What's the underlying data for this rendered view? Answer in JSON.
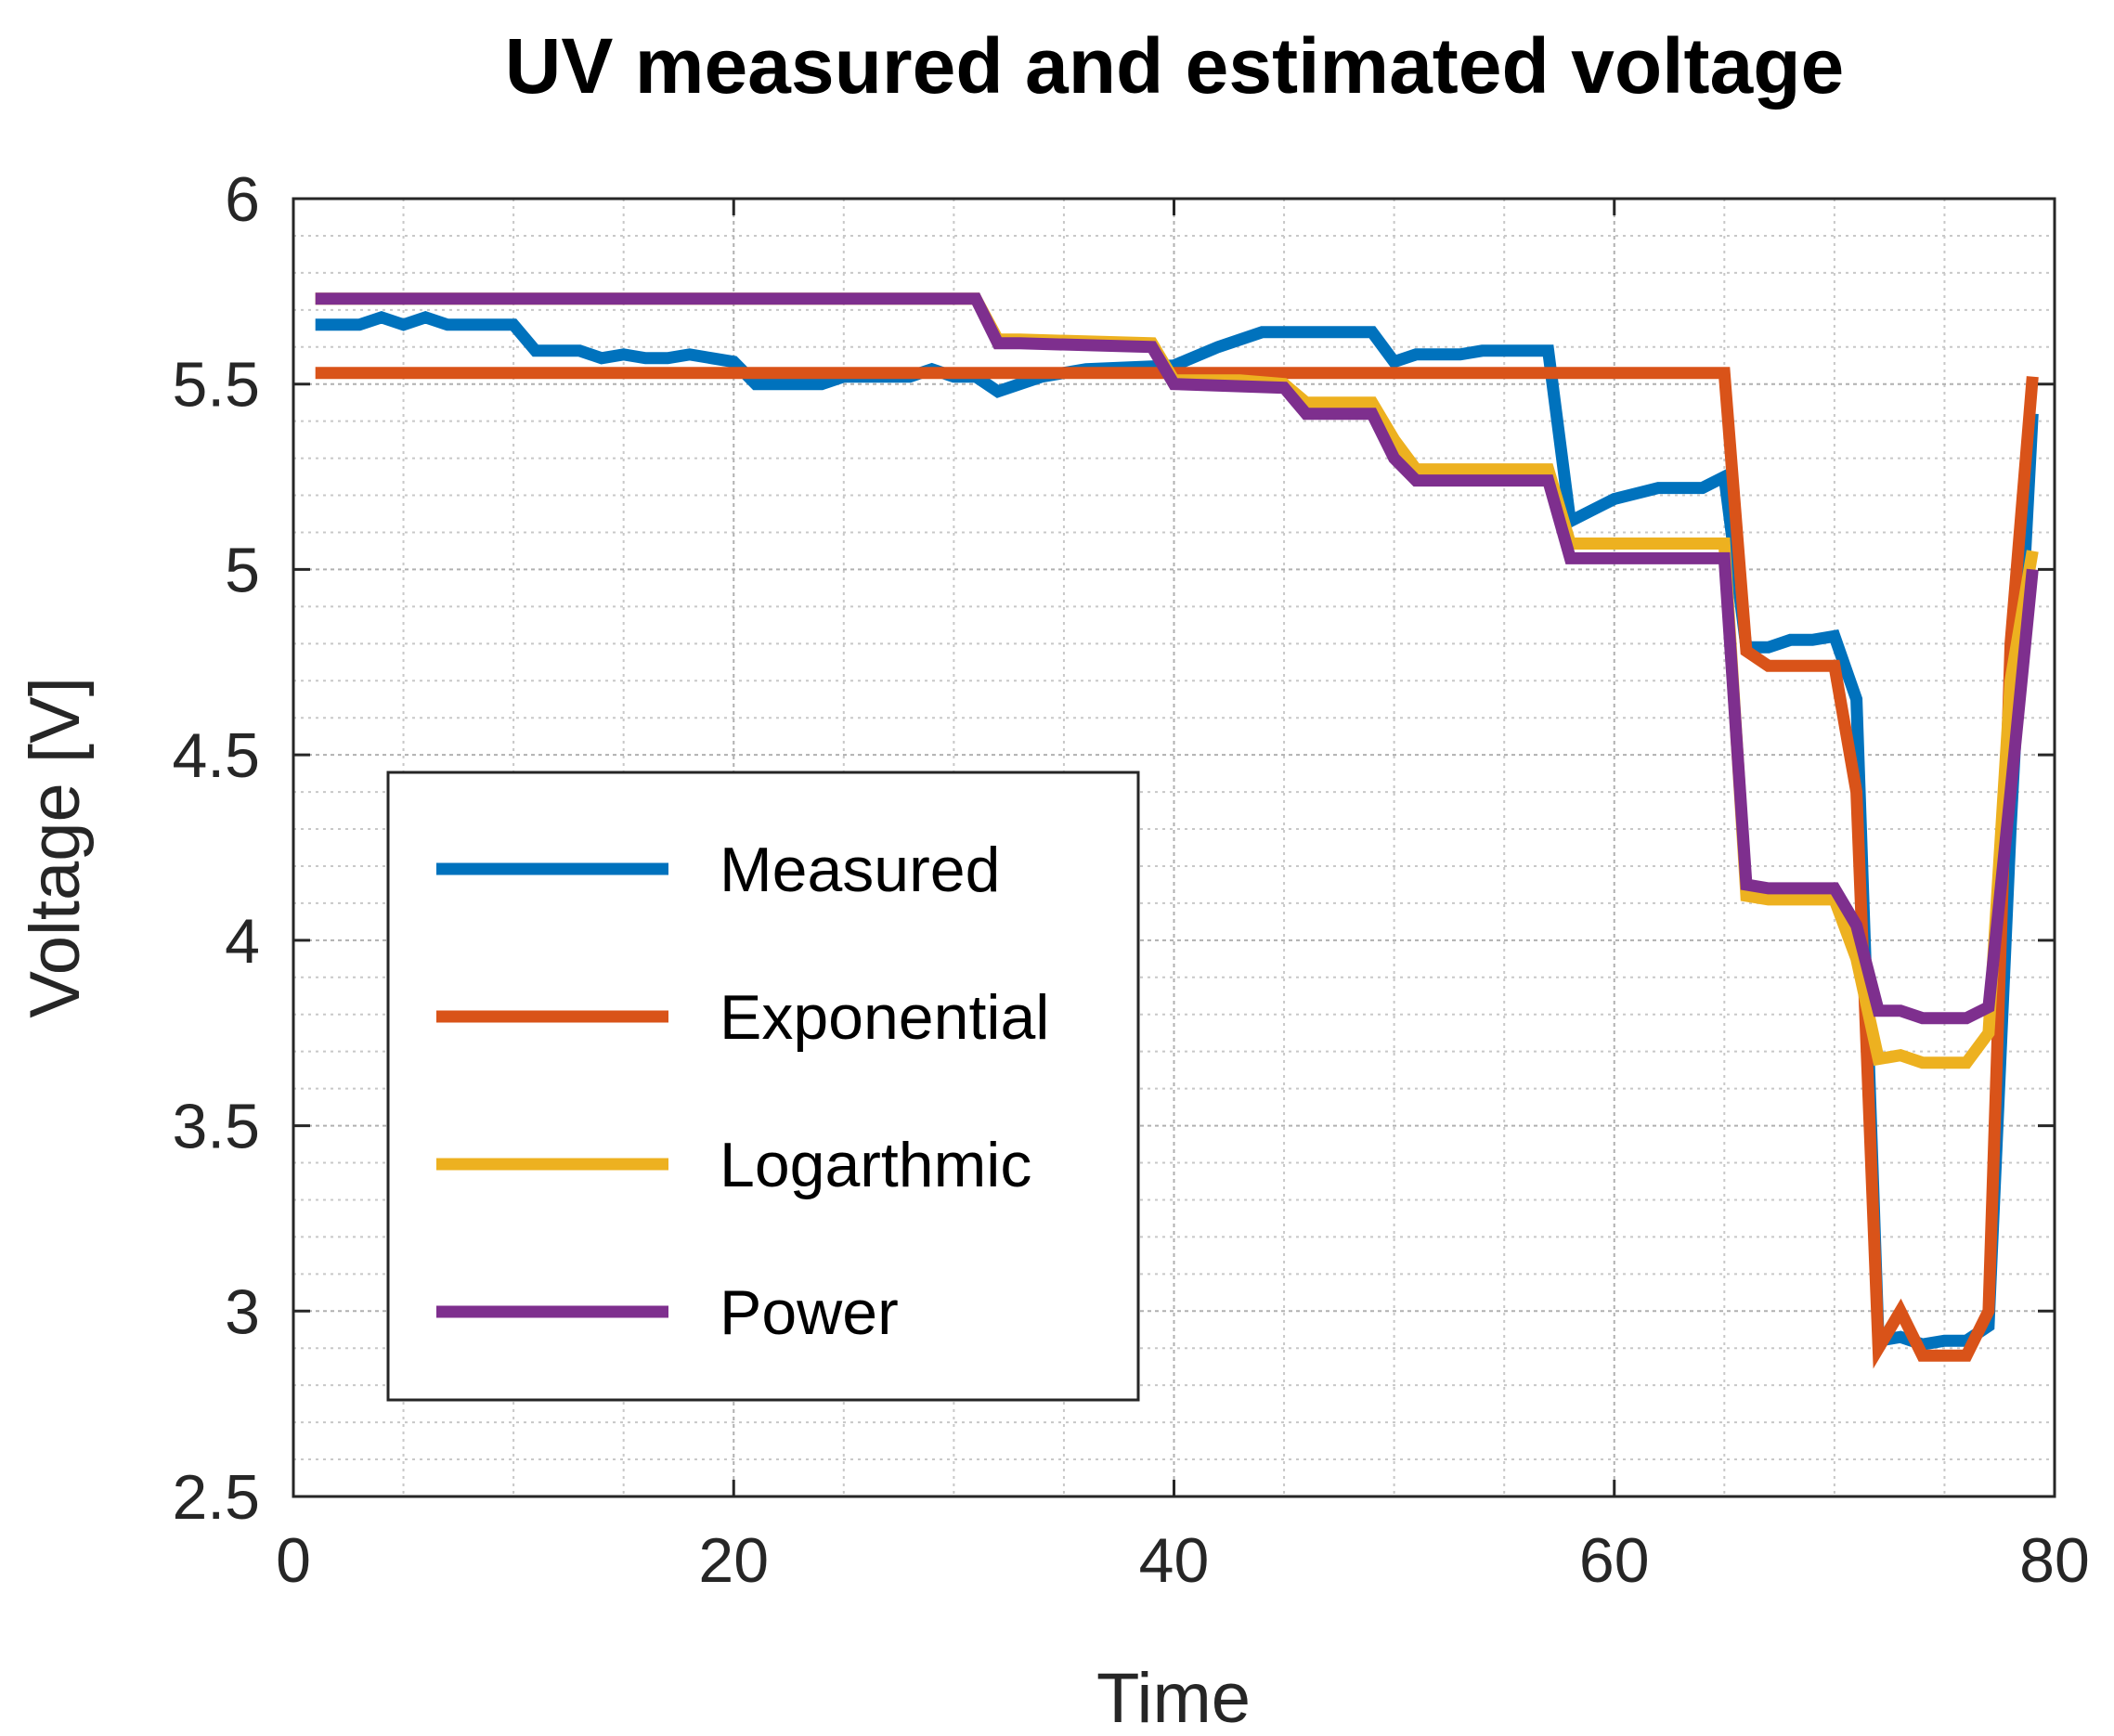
{
  "chart_data": {
    "type": "line",
    "title": "UV measured and estimated voltage",
    "xlabel": "Time",
    "ylabel": "Voltage [V]",
    "xlim": [
      0,
      80
    ],
    "ylim": [
      2.5,
      6
    ],
    "xticks": [
      0,
      20,
      40,
      60,
      80
    ],
    "yticks": [
      2.5,
      3,
      3.5,
      4,
      4.5,
      5,
      5.5,
      6
    ],
    "xtick_labels": [
      "0",
      "20",
      "40",
      "60",
      "80"
    ],
    "ytick_labels": [
      "2.5",
      "3",
      "3.5",
      "4",
      "4.5",
      "5",
      "5.5",
      "6"
    ],
    "grid": "major and minor",
    "legend_position": "lower-left",
    "series": [
      {
        "name": "Measured",
        "color": "#0072BD",
        "points": [
          [
            1,
            5.66
          ],
          [
            3,
            5.66
          ],
          [
            4,
            5.68
          ],
          [
            5,
            5.66
          ],
          [
            6,
            5.68
          ],
          [
            7,
            5.66
          ],
          [
            10,
            5.66
          ],
          [
            11,
            5.59
          ],
          [
            13,
            5.59
          ],
          [
            14,
            5.57
          ],
          [
            15,
            5.58
          ],
          [
            16,
            5.57
          ],
          [
            17,
            5.57
          ],
          [
            18,
            5.58
          ],
          [
            19,
            5.57
          ],
          [
            20,
            5.56
          ],
          [
            21,
            5.5
          ],
          [
            24,
            5.5
          ],
          [
            25,
            5.52
          ],
          [
            28,
            5.52
          ],
          [
            29,
            5.54
          ],
          [
            30,
            5.52
          ],
          [
            31,
            5.52
          ],
          [
            32,
            5.48
          ],
          [
            33,
            5.5
          ],
          [
            34,
            5.52
          ],
          [
            36,
            5.54
          ],
          [
            40,
            5.55
          ],
          [
            42,
            5.6
          ],
          [
            44,
            5.64
          ],
          [
            49,
            5.64
          ],
          [
            50,
            5.56
          ],
          [
            51,
            5.58
          ],
          [
            53,
            5.58
          ],
          [
            54,
            5.59
          ],
          [
            57,
            5.59
          ],
          [
            58,
            5.13
          ],
          [
            59,
            5.16
          ],
          [
            60,
            5.19
          ],
          [
            62,
            5.22
          ],
          [
            64,
            5.22
          ],
          [
            65,
            5.25
          ],
          [
            66,
            4.79
          ],
          [
            67,
            4.79
          ],
          [
            68,
            4.81
          ],
          [
            69,
            4.81
          ],
          [
            70,
            4.82
          ],
          [
            71,
            4.65
          ],
          [
            72,
            2.92
          ],
          [
            73,
            2.93
          ],
          [
            74,
            2.91
          ],
          [
            75,
            2.92
          ],
          [
            76,
            2.92
          ],
          [
            77,
            2.96
          ],
          [
            78,
            4.3
          ],
          [
            79,
            5.42
          ]
        ]
      },
      {
        "name": "Exponential",
        "color": "#D95319",
        "points": [
          [
            1,
            5.53
          ],
          [
            65,
            5.53
          ],
          [
            66,
            4.78
          ],
          [
            67,
            4.74
          ],
          [
            70,
            4.74
          ],
          [
            71,
            4.4
          ],
          [
            72,
            2.9
          ],
          [
            73,
            3.0
          ],
          [
            74,
            2.88
          ],
          [
            76,
            2.88
          ],
          [
            77,
            3.0
          ],
          [
            78,
            4.8
          ],
          [
            79,
            5.52
          ]
        ]
      },
      {
        "name": "Logarthmic",
        "color": "#EDB120",
        "points": [
          [
            1,
            5.73
          ],
          [
            31,
            5.73
          ],
          [
            32,
            5.62
          ],
          [
            33,
            5.62
          ],
          [
            39,
            5.61
          ],
          [
            40,
            5.51
          ],
          [
            43,
            5.51
          ],
          [
            45,
            5.5
          ],
          [
            46,
            5.45
          ],
          [
            49,
            5.45
          ],
          [
            50,
            5.35
          ],
          [
            51,
            5.27
          ],
          [
            57,
            5.27
          ],
          [
            58,
            5.07
          ],
          [
            65,
            5.07
          ],
          [
            66,
            4.12
          ],
          [
            67,
            4.11
          ],
          [
            70,
            4.11
          ],
          [
            71,
            3.95
          ],
          [
            72,
            3.68
          ],
          [
            73,
            3.69
          ],
          [
            74,
            3.67
          ],
          [
            76,
            3.67
          ],
          [
            77,
            3.75
          ],
          [
            78,
            4.7
          ],
          [
            79,
            5.05
          ]
        ]
      },
      {
        "name": "Power",
        "color": "#7E2F8E",
        "points": [
          [
            1,
            5.73
          ],
          [
            31,
            5.73
          ],
          [
            32,
            5.61
          ],
          [
            33,
            5.61
          ],
          [
            39,
            5.6
          ],
          [
            40,
            5.5
          ],
          [
            45,
            5.49
          ],
          [
            46,
            5.42
          ],
          [
            49,
            5.42
          ],
          [
            50,
            5.3
          ],
          [
            51,
            5.24
          ],
          [
            57,
            5.24
          ],
          [
            58,
            5.03
          ],
          [
            65,
            5.03
          ],
          [
            66,
            4.15
          ],
          [
            67,
            4.14
          ],
          [
            70,
            4.14
          ],
          [
            71,
            4.04
          ],
          [
            72,
            3.81
          ],
          [
            73,
            3.81
          ],
          [
            74,
            3.79
          ],
          [
            76,
            3.79
          ],
          [
            77,
            3.82
          ],
          [
            78,
            4.4
          ],
          [
            79,
            5.0
          ]
        ]
      }
    ]
  }
}
